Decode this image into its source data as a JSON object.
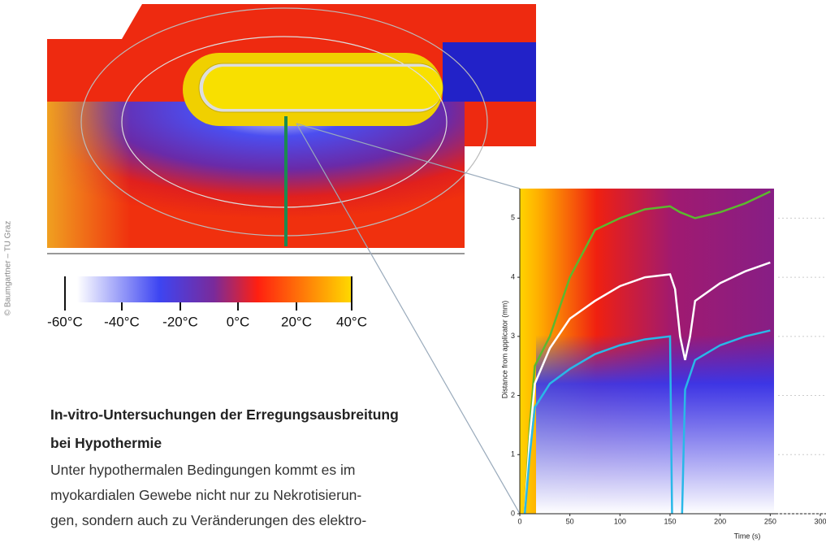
{
  "credit": "© Baumgartner – TU Graz",
  "colorbar": {
    "labels": [
      "-60°C",
      "-40°C",
      "-20°C",
      "0°C",
      "20°C",
      "40°C"
    ]
  },
  "caption": {
    "title": [
      "In-vitro-Untersuchungen der Erregungsausbreitung",
      "bei Hypothermie"
    ],
    "body": [
      "Unter hypothermalen Bedingungen kommt es im",
      "myokardialen Gewebe nicht nur zu Nekrotisierun-",
      "gen, sondern auch zu Veränderungen des elektro-"
    ]
  },
  "chart_data": {
    "type": "line",
    "xlabel": "Time (s)",
    "ylabel": "Distance from applicator (mm)",
    "xlim": [
      0,
      300
    ],
    "ylim": [
      0,
      5.5
    ],
    "xticks": [
      0,
      50,
      100,
      150,
      200,
      250,
      300
    ],
    "yticks": [
      0,
      1,
      2,
      3,
      4,
      5
    ],
    "series": [
      {
        "color": "#5cb82e",
        "x": [
          5,
          10,
          15,
          30,
          50,
          75,
          100,
          125,
          150,
          160,
          175,
          200,
          225,
          250
        ],
        "values": [
          0,
          1.5,
          2.5,
          3,
          4,
          4.8,
          5,
          5.15,
          5.2,
          5.1,
          5,
          5.1,
          5.25,
          5.45
        ]
      },
      {
        "color": "#ffffff",
        "x": [
          5,
          10,
          15,
          30,
          50,
          75,
          100,
          125,
          150,
          155,
          160,
          165,
          170,
          175,
          200,
          225,
          250
        ],
        "values": [
          0,
          1.3,
          2.2,
          2.8,
          3.3,
          3.6,
          3.85,
          4,
          4.05,
          3.8,
          3,
          2.6,
          3,
          3.6,
          3.9,
          4.1,
          4.25
        ]
      },
      {
        "color": "#29b8e8",
        "x": [
          5,
          10,
          15,
          30,
          50,
          75,
          100,
          125,
          150,
          152,
          null,
          162,
          165,
          175,
          200,
          225,
          250
        ],
        "values": [
          0,
          1,
          1.8,
          2.2,
          2.45,
          2.7,
          2.85,
          2.95,
          3,
          0,
          null,
          0,
          2.1,
          2.6,
          2.85,
          3,
          3.1
        ]
      }
    ]
  }
}
